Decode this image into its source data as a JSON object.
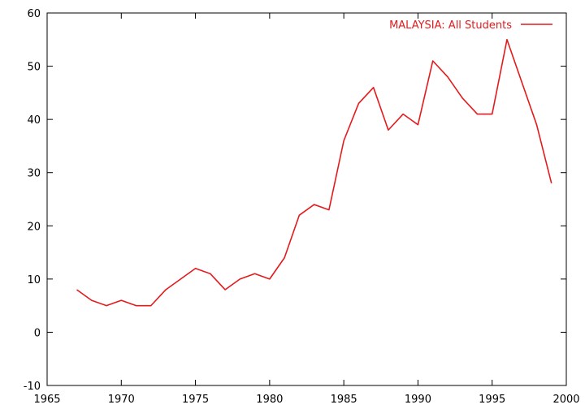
{
  "chart_data": {
    "type": "line",
    "title": "",
    "xlabel": "",
    "ylabel": "",
    "xlim": [
      1965,
      2000
    ],
    "ylim": [
      -10,
      60
    ],
    "xticks": [
      1965,
      1970,
      1975,
      1980,
      1985,
      1990,
      1995,
      2000
    ],
    "yticks": [
      -10,
      0,
      10,
      20,
      30,
      40,
      50,
      60
    ],
    "grid": false,
    "legend_position": "top-right",
    "series": [
      {
        "name": "MALAYSIA: All Students",
        "color": "#e41a1c",
        "x": [
          1967,
          1968,
          1969,
          1970,
          1971,
          1972,
          1973,
          1974,
          1975,
          1976,
          1977,
          1978,
          1979,
          1980,
          1981,
          1982,
          1983,
          1984,
          1985,
          1986,
          1987,
          1988,
          1989,
          1990,
          1991,
          1992,
          1993,
          1994,
          1995,
          1996,
          1997,
          1998,
          1999
        ],
        "y": [
          8,
          6,
          5,
          6,
          5,
          5,
          8,
          10,
          12,
          11,
          8,
          10,
          11,
          10,
          14,
          22,
          24,
          23,
          36,
          43,
          46,
          38,
          41,
          39,
          51,
          48,
          44,
          41,
          41,
          55,
          47,
          39,
          28
        ]
      }
    ]
  }
}
